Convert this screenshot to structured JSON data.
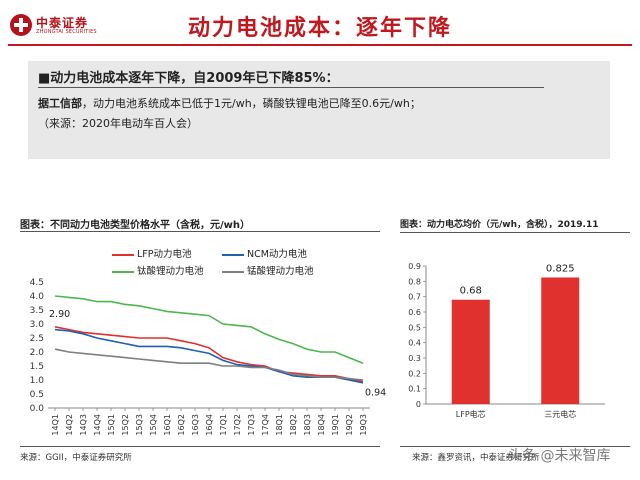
{
  "header": {
    "logo_cn": "中泰证券",
    "logo_en": "ZHONGTAI SECURITIES",
    "title": "动力电池成本：逐年下降"
  },
  "summary": {
    "headline": "■动力电池成本逐年下降，自2009年已下降85%：",
    "line1_bold": "据工信部",
    "line1_rest": "，动力电池系统成本已低于1元/wh，磷酸铁锂电池已降至0.6元/wh；",
    "line2": "（来源：2020年电动车百人会）"
  },
  "colors": {
    "lfp": "#e0312e",
    "ncm": "#1f5fb5",
    "lto": "#4cb84c",
    "lmo": "#7f7f7f",
    "bar": "#e0312e"
  },
  "chart_data": [
    {
      "type": "line",
      "title": "图表：不同动力电池类型价格水平（含税，元/wh）",
      "source": "来源：GGII，中泰证券研究所",
      "x": [
        "14Q1",
        "14Q2",
        "14Q3",
        "14Q4",
        "15Q1",
        "15Q2",
        "15Q3",
        "15Q4",
        "16Q1",
        "16Q2",
        "16Q3",
        "16Q4",
        "17Q1",
        "17Q2",
        "17Q3",
        "17Q4",
        "18Q1",
        "18Q2",
        "18Q3",
        "18Q4",
        "19Q1",
        "19Q2",
        "19Q3"
      ],
      "ylim": [
        0,
        4.5
      ],
      "yticks": [
        "0.0",
        "0.5",
        "1.0",
        "1.5",
        "2.0",
        "2.5",
        "3.0",
        "3.5",
        "4.0",
        "4.5"
      ],
      "series": [
        {
          "name": "LFP动力电池",
          "values": [
            2.9,
            2.8,
            2.7,
            2.65,
            2.6,
            2.55,
            2.5,
            2.5,
            2.5,
            2.4,
            2.3,
            2.15,
            1.8,
            1.65,
            1.55,
            1.5,
            1.3,
            1.25,
            1.2,
            1.15,
            1.15,
            1.05,
            0.94
          ]
        },
        {
          "name": "NCM动力电池",
          "values": [
            2.8,
            2.75,
            2.65,
            2.5,
            2.4,
            2.3,
            2.2,
            2.2,
            2.2,
            2.15,
            2.05,
            1.95,
            1.7,
            1.55,
            1.5,
            1.45,
            1.3,
            1.15,
            1.1,
            1.1,
            1.1,
            1.0,
            0.9
          ]
        },
        {
          "name": "钛酸锂动力电池",
          "values": [
            4.0,
            3.95,
            3.9,
            3.8,
            3.8,
            3.7,
            3.65,
            3.55,
            3.45,
            3.4,
            3.35,
            3.3,
            3.0,
            2.95,
            2.9,
            2.65,
            2.45,
            2.3,
            2.1,
            2.0,
            2.0,
            1.8,
            1.6
          ]
        },
        {
          "name": "锰酸锂动力电池",
          "values": [
            2.1,
            2.0,
            1.95,
            1.9,
            1.85,
            1.8,
            1.75,
            1.7,
            1.65,
            1.6,
            1.6,
            1.6,
            1.5,
            1.5,
            1.45,
            1.45,
            1.35,
            1.2,
            1.15,
            1.1,
            1.1,
            1.05,
            1.0
          ]
        }
      ],
      "annotations": [
        {
          "label": "2.90",
          "series": 0,
          "index": 0
        },
        {
          "label": "0.94",
          "series": 0,
          "index": 22
        }
      ]
    },
    {
      "type": "bar",
      "title": "图表：动力电芯均价（元/wh，含税），2019.11",
      "source": "来源：鑫罗资讯，中泰证券研究所",
      "categories": [
        "LFP电芯",
        "三元电芯"
      ],
      "values": [
        0.68,
        0.825
      ],
      "value_labels": [
        "0.68",
        "0.825"
      ],
      "ylim": [
        0,
        0.9
      ],
      "yticks": [
        "0",
        "0.1",
        "0.2",
        "0.3",
        "0.4",
        "0.5",
        "0.6",
        "0.7",
        "0.8",
        "0.9"
      ]
    }
  ],
  "watermark": "头条 @未来智库"
}
